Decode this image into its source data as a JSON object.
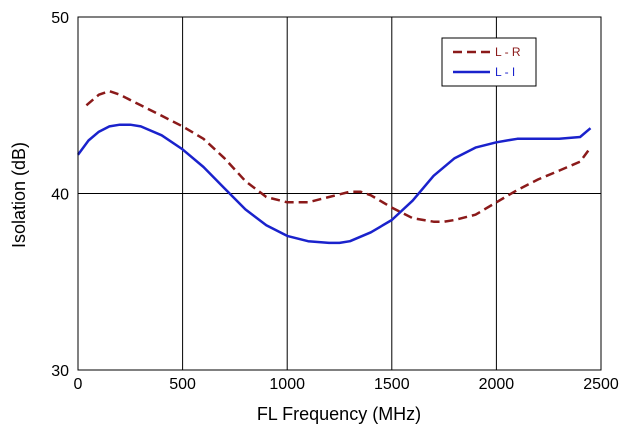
{
  "chart_data": {
    "type": "line",
    "title": "",
    "xlabel": "FL Frequency (MHz)",
    "ylabel": "Isolation (dB)",
    "xlim": [
      0,
      2500
    ],
    "ylim": [
      30,
      50
    ],
    "x_ticks": [
      0,
      500,
      1000,
      1500,
      2000,
      2500
    ],
    "y_ticks": [
      30,
      40,
      50
    ],
    "x_tick_labels": [
      "0",
      "500",
      "1000",
      "1500",
      "2000",
      "2500"
    ],
    "y_tick_labels": [
      "30",
      "40",
      "50"
    ],
    "grid": true,
    "legend_position": "top-right",
    "series": [
      {
        "name": "L - R",
        "color": "#8b1a1a",
        "style": "dashed",
        "x": [
          40,
          100,
          150,
          200,
          300,
          400,
          500,
          600,
          700,
          800,
          900,
          1000,
          1100,
          1200,
          1300,
          1350,
          1400,
          1500,
          1600,
          1700,
          1750,
          1800,
          1900,
          2000,
          2100,
          2200,
          2300,
          2400,
          2450
        ],
        "y": [
          45.0,
          45.6,
          45.8,
          45.6,
          45.0,
          44.4,
          43.8,
          43.1,
          42.0,
          40.7,
          39.8,
          39.5,
          39.5,
          39.8,
          40.1,
          40.1,
          39.9,
          39.2,
          38.6,
          38.4,
          38.4,
          38.5,
          38.8,
          39.5,
          40.2,
          40.8,
          41.3,
          41.8,
          42.6
        ]
      },
      {
        "name": "L - I",
        "color": "#1a22cc",
        "style": "solid",
        "x": [
          0,
          50,
          100,
          150,
          200,
          250,
          300,
          400,
          500,
          600,
          700,
          800,
          900,
          1000,
          1100,
          1200,
          1250,
          1300,
          1400,
          1500,
          1600,
          1700,
          1800,
          1900,
          2000,
          2050,
          2100,
          2200,
          2300,
          2400,
          2450
        ],
        "y": [
          42.2,
          43.0,
          43.5,
          43.8,
          43.9,
          43.9,
          43.8,
          43.3,
          42.5,
          41.5,
          40.3,
          39.1,
          38.2,
          37.6,
          37.3,
          37.2,
          37.2,
          37.3,
          37.8,
          38.5,
          39.6,
          41.0,
          42.0,
          42.6,
          42.9,
          43.0,
          43.1,
          43.1,
          43.1,
          43.2,
          43.7
        ]
      }
    ]
  }
}
